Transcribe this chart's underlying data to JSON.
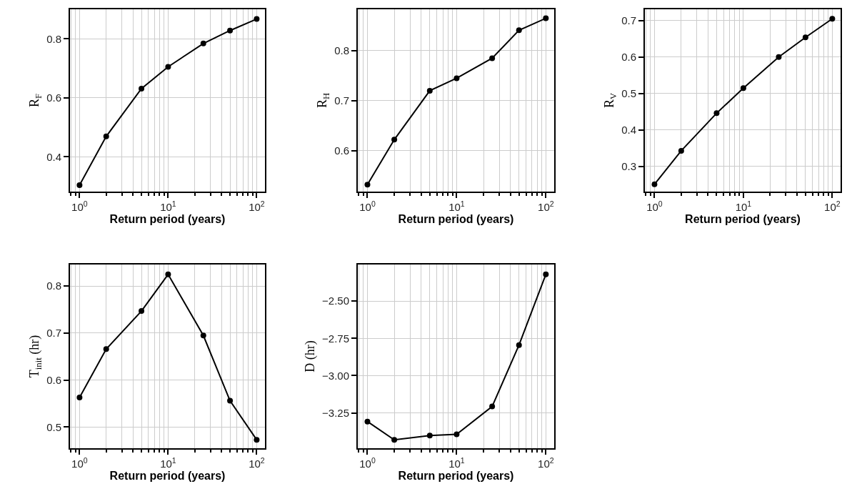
{
  "chart_data": [
    {
      "type": "line",
      "xlabel": "Return period (years)",
      "ylabel": "R$_{F}$",
      "x": [
        1,
        2,
        5,
        10,
        25,
        50,
        100
      ],
      "values": [
        0.304,
        0.469,
        0.631,
        0.705,
        0.784,
        0.828,
        0.867
      ],
      "color": "#000000",
      "marker": "circle",
      "line_style": "solid",
      "grid": true,
      "log": "x",
      "xlim": [
        0.78,
        124
      ],
      "xticks": [
        {
          "value": 1,
          "label": "10$^{0}$"
        },
        {
          "value": 10,
          "label": "10$^{1}$"
        },
        {
          "value": 100,
          "label": "10$^{2}$"
        }
      ],
      "ylim": [
        0.282,
        0.9
      ],
      "yticks": [
        0.4,
        0.6,
        0.8
      ]
    },
    {
      "type": "line",
      "xlabel": "Return period (years)",
      "ylabel": "R$_{H}$",
      "x": [
        1,
        2,
        5,
        10,
        25,
        50,
        100
      ],
      "values": [
        0.532,
        0.622,
        0.72,
        0.745,
        0.785,
        0.841,
        0.865
      ],
      "color": "#000000",
      "marker": "circle",
      "line_style": "solid",
      "grid": true,
      "log": "x",
      "xlim": [
        0.78,
        124
      ],
      "xticks": [
        {
          "value": 1,
          "label": "10$^{0}$"
        },
        {
          "value": 10,
          "label": "10$^{1}$"
        },
        {
          "value": 100,
          "label": "10$^{2}$"
        }
      ],
      "ylim": [
        0.518,
        0.883
      ],
      "yticks": [
        0.6,
        0.7,
        0.8
      ]
    },
    {
      "type": "line",
      "xlabel": "Return period (years)",
      "ylabel": "R$_{V}$",
      "x": [
        1,
        2,
        5,
        10,
        25,
        50,
        100
      ],
      "values": [
        0.251,
        0.343,
        0.446,
        0.515,
        0.6,
        0.654,
        0.705
      ],
      "color": "#000000",
      "marker": "circle",
      "line_style": "solid",
      "grid": true,
      "log": "x",
      "xlim": [
        0.78,
        124
      ],
      "xticks": [
        {
          "value": 1,
          "label": "10$^{0}$"
        },
        {
          "value": 10,
          "label": "10$^{1}$"
        },
        {
          "value": 100,
          "label": "10$^{2}$"
        }
      ],
      "ylim": [
        0.231,
        0.731
      ],
      "yticks": [
        0.3,
        0.4,
        0.5,
        0.6,
        0.7
      ]
    },
    {
      "type": "line",
      "xlabel": "Return period (years)",
      "ylabel": "T$_{init}$ (hr)",
      "x": [
        1,
        2,
        5,
        10,
        25,
        50,
        100
      ],
      "values": [
        0.563,
        0.666,
        0.747,
        0.825,
        0.695,
        0.556,
        0.473
      ],
      "color": "#000000",
      "marker": "circle",
      "line_style": "solid",
      "grid": true,
      "log": "x",
      "xlim": [
        0.78,
        124
      ],
      "xticks": [
        {
          "value": 1,
          "label": "10$^{0}$"
        },
        {
          "value": 10,
          "label": "10$^{1}$"
        },
        {
          "value": 100,
          "label": "10$^{2}$"
        }
      ],
      "ylim": [
        0.455,
        0.846
      ],
      "yticks": [
        0.5,
        0.6,
        0.7,
        0.8
      ]
    },
    {
      "type": "line",
      "xlabel": "Return period (years)",
      "ylabel": "D (hr)",
      "x": [
        1,
        2,
        5,
        10,
        25,
        50,
        100
      ],
      "values": [
        -3.308,
        -3.431,
        -3.402,
        -3.394,
        -3.207,
        -2.795,
        -2.321
      ],
      "color": "#000000",
      "marker": "circle",
      "line_style": "solid",
      "grid": true,
      "log": "x",
      "xlim": [
        0.78,
        124
      ],
      "xticks": [
        {
          "value": 1,
          "label": "10$^{0}$"
        },
        {
          "value": 10,
          "label": "10$^{1}$"
        },
        {
          "value": 100,
          "label": "10$^{2}$"
        }
      ],
      "ylim": [
        -3.487,
        -2.255
      ],
      "yticks": [
        {
          "value": -2.5,
          "label": "−2.50"
        },
        {
          "value": -2.75,
          "label": "−2.75"
        },
        {
          "value": -3.0,
          "label": "−3.00"
        },
        {
          "value": -3.25,
          "label": "−3.25"
        }
      ]
    }
  ]
}
